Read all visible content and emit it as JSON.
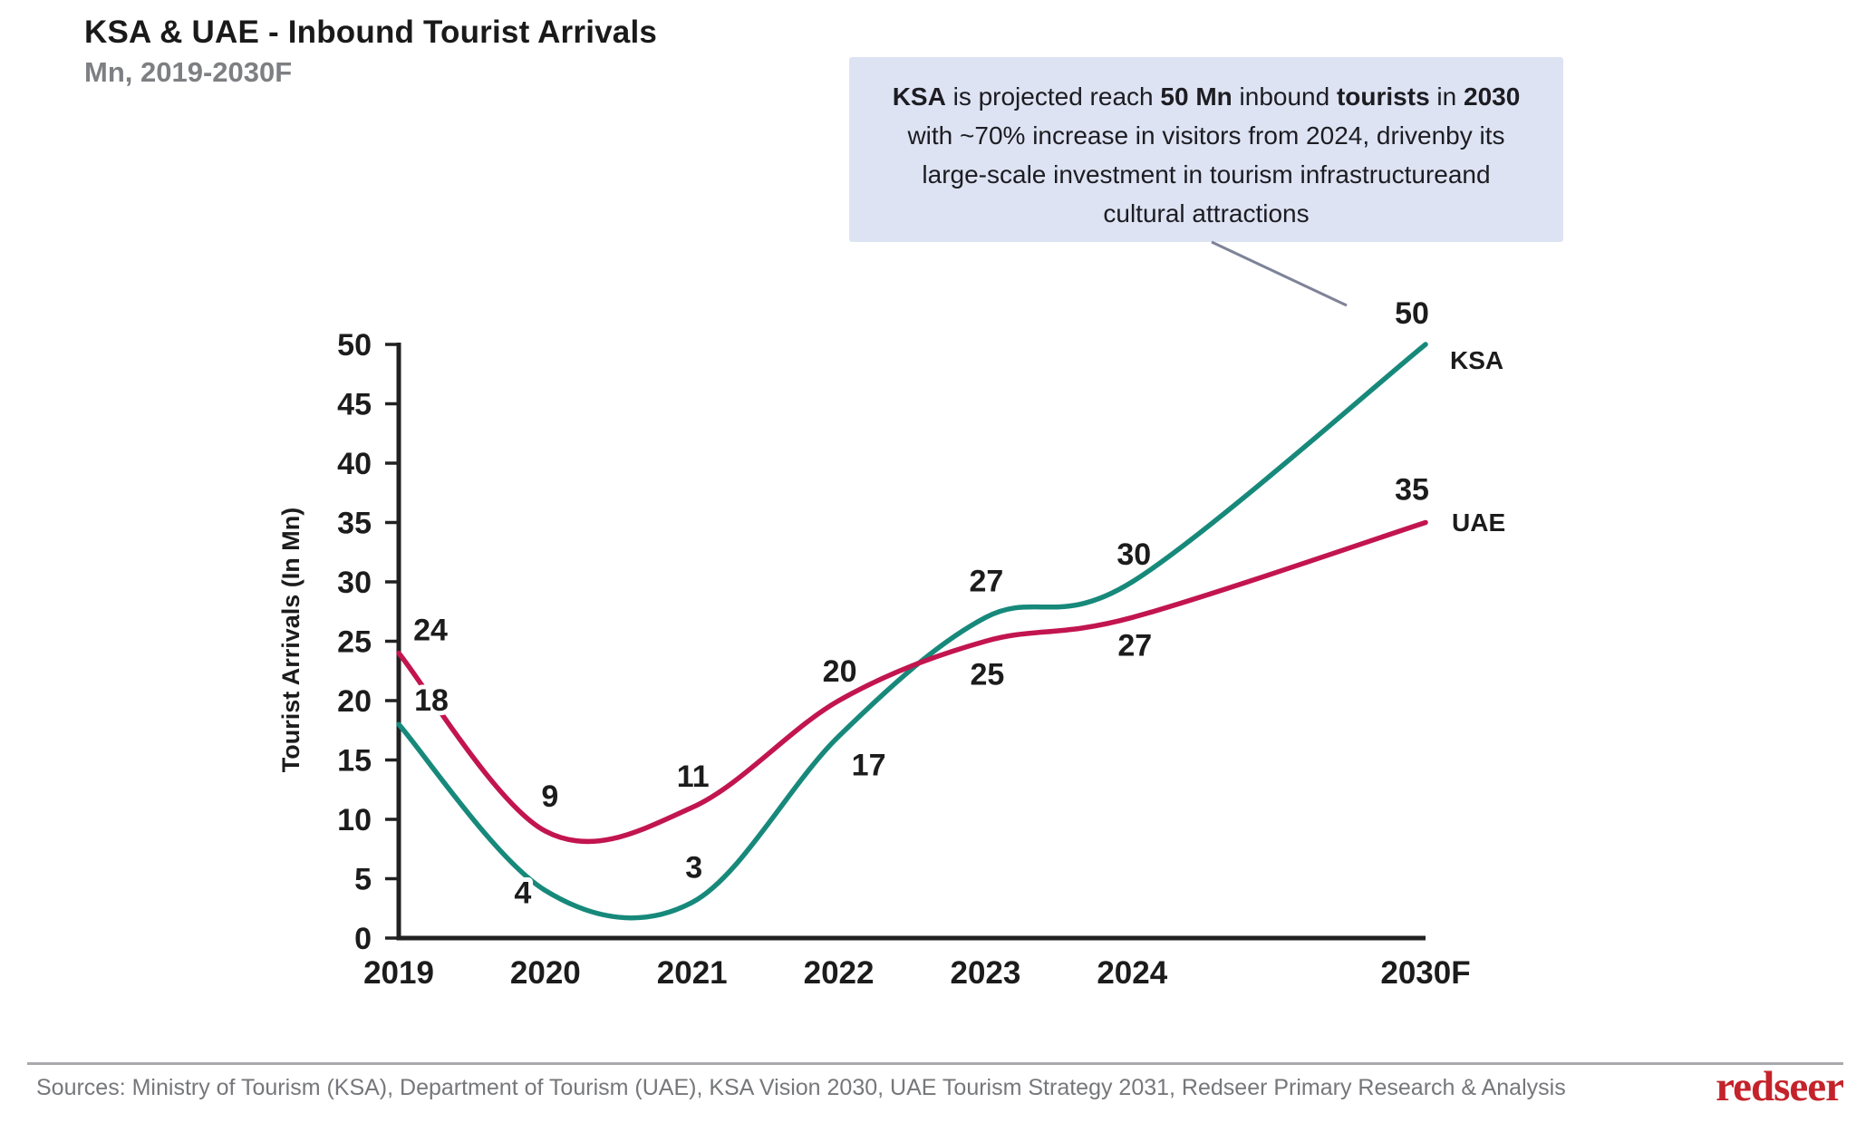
{
  "header": {
    "title": "KSA & UAE - Inbound Tourist Arrivals",
    "subtitle": "Mn, 2019-2030F"
  },
  "annotation": {
    "bg_color": "#dde3f2",
    "lines": [
      [
        {
          "t": "KSA",
          "b": true
        },
        {
          "t": " is projected reach ",
          "b": false
        },
        {
          "t": "50 Mn",
          "b": true
        },
        {
          "t": " inbound ",
          "b": false
        },
        {
          "t": "tourists",
          "b": true
        },
        {
          "t": " in ",
          "b": false
        },
        {
          "t": "2030",
          "b": true
        }
      ],
      [
        {
          "t": "with ~70% increase in visitors from 2024, drivenby its",
          "b": false
        }
      ],
      [
        {
          "t": "large-scale investment in tourism infrastructureand",
          "b": false
        }
      ],
      [
        {
          "t": "cultural attractions",
          "b": false
        }
      ]
    ]
  },
  "chart_data": {
    "type": "line",
    "title": "KSA & UAE - Inbound Tourist Arrivals (Mn, 2019-2030F)",
    "categories": [
      "2019",
      "2020",
      "2021",
      "2022",
      "2023",
      "2024",
      "2030F"
    ],
    "x_units": [
      0,
      1,
      2,
      3,
      4,
      5,
      7
    ],
    "xlabel": "",
    "ylabel": "Tourist Arrivals (In Mn)",
    "ylim": [
      0,
      50
    ],
    "ytick_step": 5,
    "grid": false,
    "legend_position": "line-end-right",
    "axis_color": "#212121",
    "series": [
      {
        "name": "KSA",
        "color": "#17897B",
        "values": [
          18,
          4,
          3,
          17,
          27,
          30,
          50
        ]
      },
      {
        "name": "UAE",
        "color": "#C2154F",
        "values": [
          24,
          9,
          11,
          20,
          25,
          27,
          35
        ]
      }
    ]
  },
  "footer": {
    "sources": "Sources: Ministry of Tourism (KSA), Department of Tourism (UAE), KSA Vision 2030, UAE Tourism Strategy 2031, Redseer Primary Research & Analysis",
    "logo": "redseer",
    "logo_color": "#C4232B"
  }
}
